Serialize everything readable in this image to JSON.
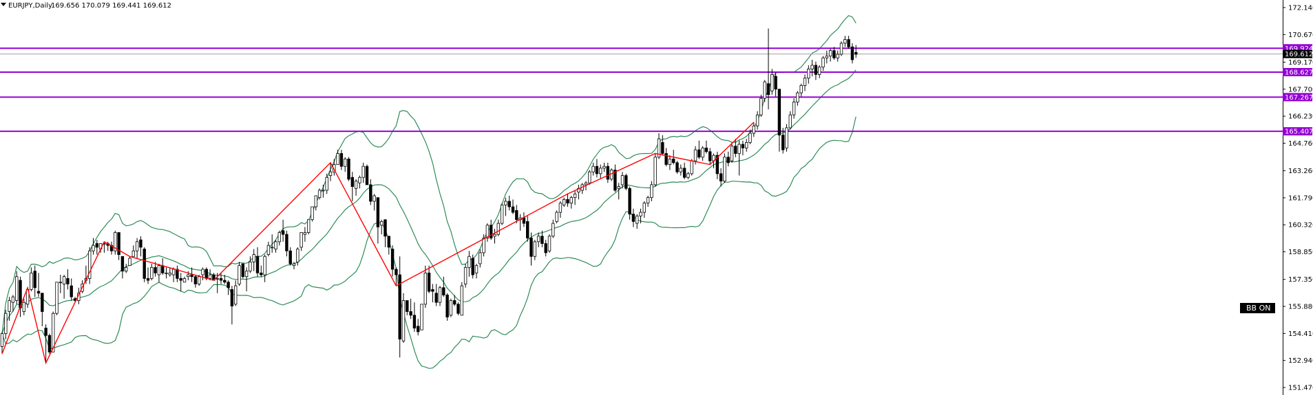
{
  "header": {
    "symbol": "EURJPY,Daily",
    "ohlc": "169.656 170.079 169.441 169.612"
  },
  "indicator_badge": "BB ON",
  "colors": {
    "bull": "#000000",
    "bear": "#000000",
    "bollinger": "#2e8b57",
    "zigzag": "#ff0000",
    "level": "#9400d3",
    "price_line": "#a0a0a0",
    "axis": "#000000"
  },
  "chart_data": {
    "type": "candlestick",
    "title": "EURJPY,Daily",
    "y_ticks": [
      "172.140",
      "170.670",
      "169.170",
      "167.700",
      "166.230",
      "164.760",
      "163.260",
      "161.790",
      "160.320",
      "158.850",
      "157.350",
      "155.880",
      "154.410",
      "152.940",
      "151.470"
    ],
    "ylim": [
      151.0,
      172.5
    ],
    "current_price": "169.612",
    "levels": [
      {
        "label": "169.924",
        "value": 169.924
      },
      {
        "label": "168.627",
        "value": 168.627
      },
      {
        "label": "167.267",
        "value": 167.267
      },
      {
        "label": "165.407",
        "value": 165.407
      }
    ],
    "candles": [
      [
        153.7,
        154.5,
        153.3,
        154.4
      ],
      [
        154.4,
        155.7,
        154.1,
        155.5
      ],
      [
        155.6,
        156.4,
        155.1,
        156.2
      ],
      [
        156.1,
        156.5,
        155.6,
        156.4
      ],
      [
        156.2,
        157.8,
        156.0,
        157.5
      ],
      [
        157.3,
        157.5,
        155.3,
        155.8
      ],
      [
        155.6,
        156.3,
        155.4,
        156.1
      ],
      [
        156.0,
        156.9,
        155.8,
        156.8
      ],
      [
        156.8,
        158.0,
        156.7,
        157.7
      ],
      [
        157.8,
        158.1,
        156.4,
        156.9
      ],
      [
        156.7,
        157.7,
        156.4,
        156.6
      ],
      [
        156.6,
        156.6,
        154.8,
        155.6
      ],
      [
        154.7,
        154.9,
        152.8,
        154.3
      ],
      [
        154.3,
        154.4,
        153.3,
        153.4
      ],
      [
        153.4,
        155.6,
        153.4,
        155.5
      ],
      [
        155.5,
        157.2,
        155.4,
        157.2
      ],
      [
        157.2,
        157.6,
        156.6,
        157.2
      ],
      [
        157.1,
        157.6,
        156.3,
        157.5
      ],
      [
        157.4,
        157.9,
        156.8,
        157.1
      ],
      [
        157.0,
        157.4,
        156.2,
        156.4
      ],
      [
        156.3,
        156.4,
        156.1,
        156.2
      ],
      [
        156.2,
        156.9,
        156.0,
        156.6
      ],
      [
        156.7,
        157.3,
        156.6,
        157.1
      ],
      [
        157.3,
        158.1,
        157.1,
        157.4
      ],
      [
        157.4,
        159.1,
        157.1,
        158.9
      ],
      [
        158.9,
        159.6,
        158.7,
        159.2
      ],
      [
        159.3,
        159.5,
        158.7,
        159.1
      ],
      [
        159.0,
        159.3,
        158.8,
        159.3
      ],
      [
        159.3,
        159.4,
        158.8,
        159.3
      ],
      [
        159.3,
        159.4,
        158.9,
        159.2
      ],
      [
        159.2,
        159.4,
        158.7,
        158.9
      ],
      [
        158.9,
        160.0,
        158.7,
        159.9
      ],
      [
        159.9,
        159.9,
        158.4,
        158.7
      ],
      [
        158.6,
        158.6,
        157.4,
        157.8
      ],
      [
        157.8,
        158.2,
        157.7,
        158.0
      ],
      [
        158.1,
        158.6,
        158.1,
        158.5
      ],
      [
        158.6,
        159.2,
        158.6,
        158.9
      ],
      [
        158.9,
        159.6,
        158.5,
        159.4
      ],
      [
        159.5,
        159.7,
        158.6,
        159.1
      ],
      [
        159.0,
        159.1,
        157.2,
        157.4
      ],
      [
        157.4,
        158.0,
        157.1,
        157.3
      ],
      [
        157.4,
        158.2,
        157.3,
        158.0
      ],
      [
        158.0,
        158.3,
        157.5,
        157.7
      ],
      [
        157.6,
        158.2,
        157.2,
        158.1
      ],
      [
        158.1,
        158.5,
        157.6,
        157.7
      ],
      [
        157.7,
        158.0,
        157.4,
        157.7
      ],
      [
        157.6,
        158.0,
        157.5,
        157.7
      ],
      [
        157.6,
        158.0,
        157.2,
        157.9
      ],
      [
        157.9,
        158.1,
        157.2,
        157.4
      ],
      [
        157.4,
        157.7,
        156.7,
        157.3
      ],
      [
        157.2,
        157.5,
        157.2,
        157.4
      ],
      [
        157.5,
        157.8,
        157.3,
        157.6
      ],
      [
        157.6,
        158.0,
        157.2,
        157.5
      ],
      [
        157.5,
        157.6,
        156.9,
        157.1
      ],
      [
        157.1,
        157.6,
        157.0,
        157.5
      ],
      [
        157.6,
        158.0,
        157.3,
        157.9
      ],
      [
        157.9,
        158.0,
        157.3,
        157.4
      ],
      [
        157.4,
        157.9,
        157.3,
        157.6
      ],
      [
        157.6,
        157.7,
        157.3,
        157.3
      ],
      [
        157.4,
        157.7,
        156.6,
        157.4
      ],
      [
        157.4,
        157.7,
        157.1,
        157.3
      ],
      [
        157.3,
        157.6,
        157.1,
        157.2
      ],
      [
        157.2,
        157.3,
        156.5,
        156.9
      ],
      [
        156.8,
        157.0,
        154.9,
        155.9
      ],
      [
        156.0,
        157.3,
        155.9,
        157.0
      ],
      [
        157.1,
        158.3,
        157.0,
        158.1
      ],
      [
        158.2,
        158.2,
        157.4,
        157.5
      ],
      [
        157.5,
        158.0,
        156.7,
        157.8
      ],
      [
        157.8,
        158.6,
        157.7,
        158.3
      ],
      [
        158.3,
        159.0,
        157.8,
        158.7
      ],
      [
        158.6,
        159.1,
        157.5,
        157.7
      ],
      [
        157.7,
        158.1,
        157.5,
        157.6
      ],
      [
        157.6,
        158.7,
        157.2,
        158.6
      ],
      [
        158.7,
        159.4,
        158.6,
        159.2
      ],
      [
        159.1,
        159.8,
        158.8,
        159.1
      ],
      [
        159.0,
        159.5,
        158.8,
        159.4
      ],
      [
        159.4,
        160.0,
        159.2,
        159.9
      ],
      [
        160.0,
        160.6,
        159.4,
        159.8
      ],
      [
        159.8,
        160.0,
        158.6,
        158.9
      ],
      [
        158.9,
        159.1,
        158.1,
        158.2
      ],
      [
        158.1,
        158.3,
        157.9,
        158.2
      ],
      [
        158.3,
        159.1,
        158.1,
        159.0
      ],
      [
        159.1,
        159.9,
        158.9,
        159.9
      ],
      [
        159.8,
        160.2,
        159.4,
        159.9
      ],
      [
        159.9,
        160.6,
        159.8,
        160.6
      ],
      [
        160.6,
        161.3,
        160.5,
        161.3
      ],
      [
        161.3,
        161.9,
        161.1,
        161.9
      ],
      [
        161.8,
        162.3,
        161.7,
        162.2
      ],
      [
        162.2,
        162.5,
        161.8,
        162.2
      ],
      [
        162.2,
        163.1,
        162.0,
        162.9
      ],
      [
        163.0,
        163.7,
        162.7,
        163.2
      ],
      [
        163.2,
        163.9,
        163.0,
        163.6
      ],
      [
        163.6,
        164.4,
        163.6,
        164.2
      ],
      [
        164.2,
        164.4,
        163.3,
        163.5
      ],
      [
        163.5,
        164.0,
        163.2,
        163.9
      ],
      [
        163.9,
        164.0,
        162.7,
        162.8
      ],
      [
        162.9,
        163.2,
        161.6,
        162.4
      ],
      [
        162.3,
        162.8,
        161.9,
        162.7
      ],
      [
        162.6,
        163.0,
        162.3,
        162.9
      ],
      [
        162.9,
        163.7,
        162.6,
        163.5
      ],
      [
        163.5,
        163.6,
        162.5,
        162.5
      ],
      [
        162.5,
        162.8,
        161.4,
        161.6
      ],
      [
        161.6,
        162.0,
        161.1,
        161.9
      ],
      [
        161.8,
        161.8,
        159.3,
        160.2
      ],
      [
        160.3,
        160.6,
        159.8,
        160.5
      ],
      [
        160.6,
        160.6,
        159.1,
        159.7
      ],
      [
        159.7,
        159.7,
        158.7,
        159.1
      ],
      [
        159.0,
        159.2,
        157.5,
        157.9
      ],
      [
        157.9,
        158.0,
        157.0,
        157.6
      ],
      [
        157.6,
        158.6,
        153.1,
        154.1
      ],
      [
        154.0,
        156.6,
        153.9,
        156.2
      ],
      [
        156.2,
        156.2,
        155.4,
        155.6
      ],
      [
        155.6,
        156.3,
        155.2,
        155.4
      ],
      [
        155.4,
        156.1,
        154.5,
        154.7
      ],
      [
        154.8,
        155.2,
        154.3,
        154.5
      ],
      [
        154.6,
        156.0,
        154.6,
        156.0
      ],
      [
        156.0,
        158.1,
        155.8,
        157.7
      ],
      [
        157.7,
        158.1,
        156.6,
        156.7
      ],
      [
        156.8,
        157.1,
        156.1,
        156.7
      ],
      [
        156.6,
        157.1,
        155.9,
        156.1
      ],
      [
        156.1,
        157.0,
        155.9,
        156.9
      ],
      [
        156.9,
        157.5,
        156.4,
        156.5
      ],
      [
        156.5,
        156.6,
        155.1,
        155.3
      ],
      [
        155.4,
        156.3,
        155.3,
        156.2
      ],
      [
        156.2,
        156.5,
        155.9,
        156.0
      ],
      [
        156.0,
        156.1,
        155.4,
        155.5
      ],
      [
        155.4,
        157.2,
        155.4,
        157.0
      ],
      [
        157.1,
        158.2,
        156.9,
        158.0
      ],
      [
        158.0,
        158.9,
        157.5,
        158.6
      ],
      [
        158.5,
        158.7,
        157.4,
        157.6
      ],
      [
        157.7,
        158.2,
        157.4,
        158.1
      ],
      [
        158.2,
        159.0,
        158.0,
        158.8
      ],
      [
        158.8,
        159.8,
        158.6,
        159.6
      ],
      [
        159.6,
        160.4,
        159.4,
        160.3
      ],
      [
        160.3,
        160.6,
        159.5,
        159.6
      ],
      [
        159.7,
        160.1,
        159.3,
        159.8
      ],
      [
        159.8,
        160.6,
        159.7,
        160.4
      ],
      [
        160.4,
        161.5,
        160.3,
        161.4
      ],
      [
        161.4,
        161.8,
        160.8,
        161.6
      ],
      [
        161.6,
        161.9,
        161.1,
        161.3
      ],
      [
        161.3,
        161.7,
        160.9,
        161.0
      ],
      [
        161.1,
        161.4,
        160.4,
        160.6
      ],
      [
        160.6,
        160.9,
        160.0,
        160.7
      ],
      [
        160.7,
        161.0,
        160.2,
        160.4
      ],
      [
        160.5,
        160.8,
        159.4,
        159.6
      ],
      [
        159.6,
        159.9,
        158.1,
        158.6
      ],
      [
        158.6,
        159.5,
        158.4,
        159.4
      ],
      [
        159.4,
        159.9,
        159.1,
        159.7
      ],
      [
        159.7,
        160.0,
        159.1,
        159.3
      ],
      [
        159.3,
        159.5,
        158.6,
        158.8
      ],
      [
        158.9,
        159.8,
        158.8,
        159.7
      ],
      [
        159.7,
        160.6,
        159.6,
        160.4
      ],
      [
        160.5,
        161.1,
        160.4,
        161.0
      ],
      [
        161.0,
        161.6,
        160.7,
        161.5
      ],
      [
        161.4,
        161.8,
        161.3,
        161.7
      ],
      [
        161.7,
        162.0,
        161.3,
        161.5
      ],
      [
        161.5,
        161.9,
        161.2,
        161.8
      ],
      [
        161.8,
        162.2,
        161.4,
        162.0
      ],
      [
        162.1,
        162.5,
        161.7,
        162.3
      ],
      [
        162.2,
        162.6,
        162.0,
        162.5
      ],
      [
        162.5,
        162.7,
        162.2,
        162.6
      ],
      [
        162.6,
        163.3,
        162.5,
        163.2
      ],
      [
        163.2,
        163.7,
        163.0,
        163.5
      ],
      [
        163.5,
        163.9,
        162.9,
        163.1
      ],
      [
        163.1,
        163.6,
        162.8,
        163.4
      ],
      [
        163.4,
        163.7,
        163.2,
        163.5
      ],
      [
        163.5,
        163.7,
        162.6,
        162.8
      ],
      [
        162.8,
        163.4,
        162.7,
        163.3
      ],
      [
        163.3,
        163.6,
        162.1,
        162.2
      ],
      [
        162.3,
        162.6,
        161.7,
        162.4
      ],
      [
        162.5,
        163.2,
        162.3,
        163.0
      ],
      [
        163.0,
        163.1,
        162.2,
        162.3
      ],
      [
        162.3,
        162.4,
        160.6,
        160.9
      ],
      [
        160.9,
        161.2,
        160.2,
        160.5
      ],
      [
        160.4,
        160.9,
        160.1,
        160.8
      ],
      [
        160.8,
        161.2,
        160.4,
        161.0
      ],
      [
        161.0,
        161.6,
        160.7,
        161.5
      ],
      [
        161.5,
        161.9,
        161.3,
        161.8
      ],
      [
        161.8,
        162.7,
        161.6,
        162.5
      ],
      [
        162.5,
        164.2,
        162.4,
        164.0
      ],
      [
        164.0,
        165.3,
        163.9,
        165.0
      ],
      [
        164.8,
        165.2,
        164.1,
        164.2
      ],
      [
        164.2,
        164.5,
        163.5,
        163.6
      ],
      [
        163.6,
        164.1,
        163.3,
        163.9
      ],
      [
        163.9,
        164.4,
        163.6,
        163.7
      ],
      [
        163.7,
        163.8,
        163.1,
        163.2
      ],
      [
        163.2,
        163.6,
        163.0,
        163.4
      ],
      [
        163.4,
        163.7,
        162.8,
        162.9
      ],
      [
        162.9,
        163.2,
        162.8,
        163.1
      ],
      [
        163.1,
        163.9,
        163.0,
        163.8
      ],
      [
        163.8,
        164.6,
        163.6,
        164.4
      ],
      [
        164.4,
        164.9,
        163.9,
        164.0
      ],
      [
        164.0,
        164.6,
        163.8,
        164.5
      ],
      [
        164.5,
        164.9,
        164.2,
        164.3
      ],
      [
        164.3,
        164.5,
        163.6,
        163.8
      ],
      [
        163.8,
        164.2,
        163.4,
        164.1
      ],
      [
        164.1,
        164.3,
        162.8,
        163.1
      ],
      [
        163.1,
        163.4,
        162.4,
        162.7
      ],
      [
        162.7,
        164.2,
        162.6,
        164.0
      ],
      [
        164.0,
        164.3,
        163.5,
        163.7
      ],
      [
        163.8,
        164.8,
        163.7,
        164.6
      ],
      [
        164.6,
        165.0,
        164.0,
        164.2
      ],
      [
        164.2,
        164.9,
        163.0,
        164.7
      ],
      [
        164.7,
        164.9,
        164.1,
        164.5
      ],
      [
        164.5,
        165.0,
        164.3,
        164.8
      ],
      [
        164.8,
        165.5,
        164.7,
        165.3
      ],
      [
        165.3,
        165.9,
        165.1,
        165.7
      ],
      [
        165.7,
        166.5,
        165.5,
        166.3
      ],
      [
        166.3,
        167.4,
        166.2,
        167.2
      ],
      [
        167.2,
        168.2,
        167.0,
        168.1
      ],
      [
        168.0,
        171.0,
        166.6,
        167.4
      ],
      [
        167.6,
        168.8,
        167.4,
        168.5
      ],
      [
        168.4,
        168.6,
        167.3,
        167.7
      ],
      [
        167.7,
        167.7,
        164.3,
        165.2
      ],
      [
        165.2,
        165.6,
        164.2,
        164.4
      ],
      [
        164.5,
        165.8,
        164.3,
        165.6
      ],
      [
        165.6,
        166.5,
        165.5,
        166.3
      ],
      [
        166.3,
        167.2,
        166.1,
        167.0
      ],
      [
        167.0,
        167.6,
        166.8,
        167.5
      ],
      [
        167.5,
        168.0,
        167.3,
        167.9
      ],
      [
        167.9,
        168.5,
        167.6,
        168.3
      ],
      [
        168.3,
        169.0,
        168.0,
        168.8
      ],
      [
        168.8,
        169.3,
        168.4,
        169.0
      ],
      [
        169.0,
        169.2,
        168.2,
        168.5
      ],
      [
        168.5,
        169.0,
        168.3,
        168.9
      ],
      [
        168.9,
        169.5,
        168.7,
        169.4
      ],
      [
        169.4,
        169.8,
        169.1,
        169.5
      ],
      [
        169.5,
        169.9,
        169.2,
        169.8
      ],
      [
        169.8,
        170.0,
        169.3,
        169.4
      ],
      [
        169.4,
        169.8,
        169.2,
        169.6
      ],
      [
        169.6,
        170.3,
        169.5,
        170.2
      ],
      [
        170.2,
        170.6,
        170.0,
        170.4
      ],
      [
        170.4,
        170.6,
        169.9,
        170.0
      ],
      [
        170.0,
        170.2,
        169.1,
        169.3
      ],
      [
        169.7,
        170.1,
        169.4,
        169.6
      ]
    ]
  }
}
